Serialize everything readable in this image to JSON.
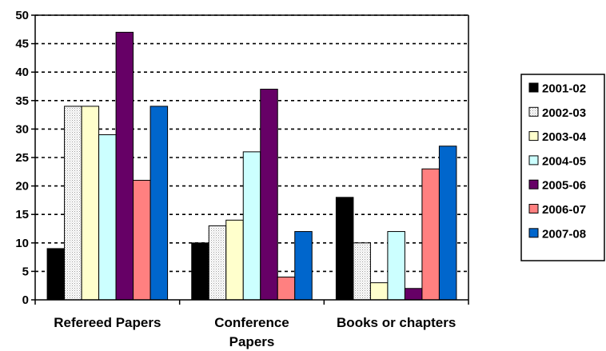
{
  "chart_data": {
    "type": "bar",
    "categories": [
      [
        "Refereed Papers"
      ],
      [
        "Conference",
        "Papers"
      ],
      [
        "Books or chapters"
      ]
    ],
    "series": [
      {
        "name": "2001-02",
        "values": [
          9,
          10,
          18
        ],
        "color": "#000000",
        "pattern": "solid"
      },
      {
        "name": "2002-03",
        "values": [
          34,
          13,
          10
        ],
        "color": "#ffffff",
        "pattern": "dots"
      },
      {
        "name": "2003-04",
        "values": [
          34,
          14,
          3
        ],
        "color": "#ffffcc",
        "pattern": "solid"
      },
      {
        "name": "2004-05",
        "values": [
          29,
          26,
          12
        ],
        "color": "#ccffff",
        "pattern": "solid"
      },
      {
        "name": "2005-06",
        "values": [
          47,
          37,
          2
        ],
        "color": "#660066",
        "pattern": "solid"
      },
      {
        "name": "2006-07",
        "values": [
          21,
          4,
          23
        ],
        "color": "#ff8080",
        "pattern": "solid"
      },
      {
        "name": "2007-08",
        "values": [
          34,
          12,
          27
        ],
        "color": "#0066cc",
        "pattern": "solid"
      }
    ],
    "ylim": [
      0,
      50
    ],
    "yticks": [
      0,
      5,
      10,
      15,
      20,
      25,
      30,
      35,
      40,
      45,
      50
    ],
    "grid": "dashed horizontal",
    "legend_position": "right"
  }
}
